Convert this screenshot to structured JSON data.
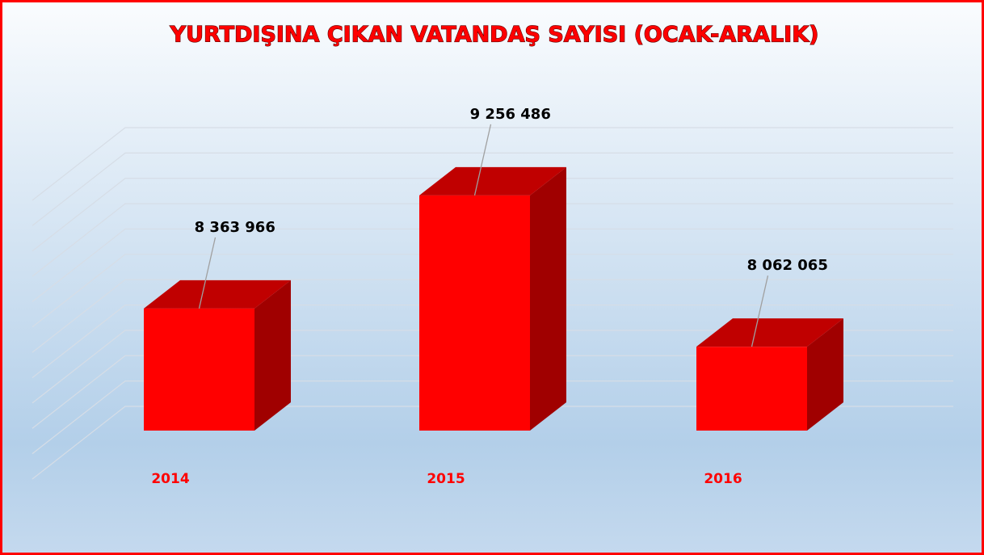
{
  "chart_data": {
    "type": "bar3d",
    "title": "YURTDIŞINA ÇIKAN VATANDAŞ SAYISI (OCAK-ARALIK)",
    "categories": [
      "2014",
      "2015",
      "2016"
    ],
    "values": [
      8363966,
      9256486,
      8062065
    ],
    "value_labels": [
      "8 363 966",
      "9 256 486",
      "8 062 065"
    ],
    "color": "#ff0000",
    "ylim": [
      7400000,
      9600000
    ],
    "yticks": [
      7400000,
      7600000,
      7800000,
      8000000,
      8200000,
      8400000,
      8600000,
      8800000,
      9000000,
      9200000,
      9400000,
      9600000
    ],
    "grid": true
  }
}
